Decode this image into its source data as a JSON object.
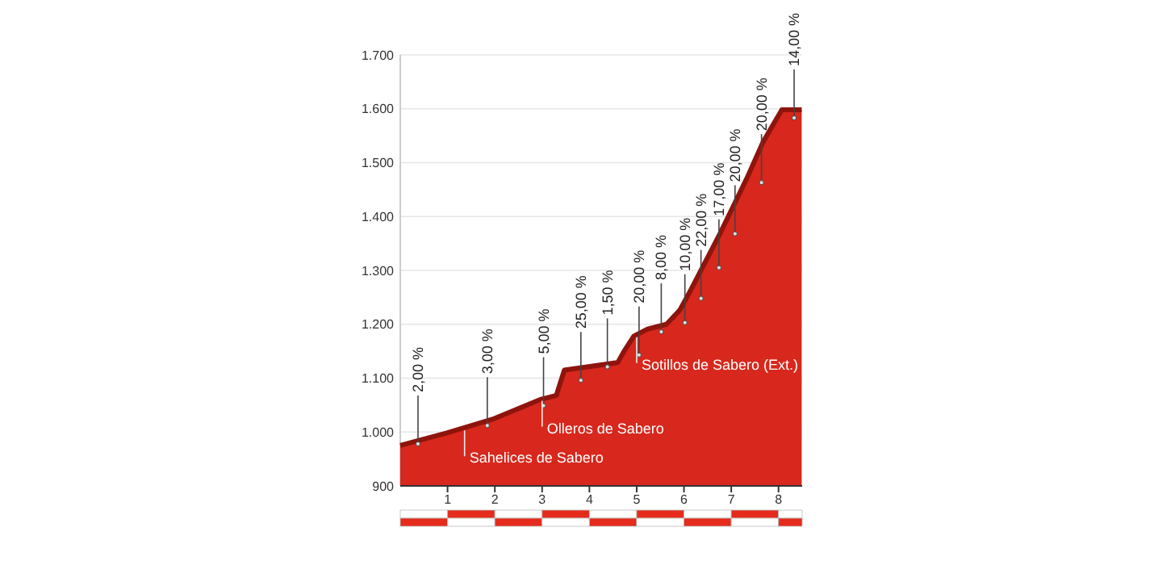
{
  "chart_data": {
    "type": "area",
    "color": "#d8271c",
    "x": [
      0,
      0.97,
      1.99,
      2.95,
      3.3,
      3.47,
      4.6,
      4.72,
      4.94,
      5.23,
      5.63,
      5.91,
      6.14,
      6.76,
      7.33,
      7.67,
      8.07,
      8.49
    ],
    "values": [
      975,
      998,
      1025,
      1060,
      1068,
      1115,
      1129,
      1148,
      1178,
      1191,
      1200,
      1226,
      1263,
      1368,
      1471,
      1538,
      1598,
      1598
    ],
    "xlim": [
      0,
      8.5
    ],
    "xticks": [
      1,
      2,
      3,
      4,
      5,
      6,
      7,
      8
    ],
    "ylim": [
      900,
      1700
    ],
    "yticks": [
      900,
      {
        "value": 1000,
        "label": "1.000"
      },
      {
        "value": 1100,
        "label": "1.100"
      },
      {
        "value": 1200,
        "label": "1.200"
      },
      {
        "value": 1300,
        "label": "1.300"
      },
      {
        "value": 1400,
        "label": "1.400"
      },
      {
        "value": 1500,
        "label": "1.500"
      },
      {
        "value": 1600,
        "label": "1.600"
      },
      {
        "value": 1700,
        "label": "1.700"
      }
    ],
    "grid": "y",
    "annotations": [
      {
        "text": "2,00 %",
        "x": 0.375,
        "y": 978
      },
      {
        "text": "3,00 %",
        "x": 1.84,
        "y": 1012
      },
      {
        "text": "5,00 %",
        "x": 3.03,
        "y": 1049
      },
      {
        "text": "25,00 %",
        "x": 3.82,
        "y": 1096
      },
      {
        "text": "1,50 %",
        "x": 4.38,
        "y": 1121
      },
      {
        "text": "20,00 %",
        "x": 5.05,
        "y": 1143
      },
      {
        "text": "8,00 %",
        "x": 5.52,
        "y": 1186
      },
      {
        "text": "10,00 %",
        "x": 6.02,
        "y": 1203
      },
      {
        "text": "22,00 %",
        "x": 6.36,
        "y": 1248
      },
      {
        "text": "17,00 %",
        "x": 6.74,
        "y": 1305
      },
      {
        "text": "20,00 %",
        "x": 7.08,
        "y": 1368
      },
      {
        "text": "20,00 %",
        "x": 7.64,
        "y": 1463
      },
      {
        "text": "14,00 %",
        "x": 8.33,
        "y": 1583
      },
      {
        "text": "Sahelices de Sabero",
        "x": 1.36,
        "y": 1003
      },
      {
        "text": "Olleros de Sabero",
        "x": 3.0,
        "y": 1058
      },
      {
        "text": "Sotillos de Sabero (Ext.)",
        "x": 5.0,
        "y": 1176
      }
    ]
  }
}
